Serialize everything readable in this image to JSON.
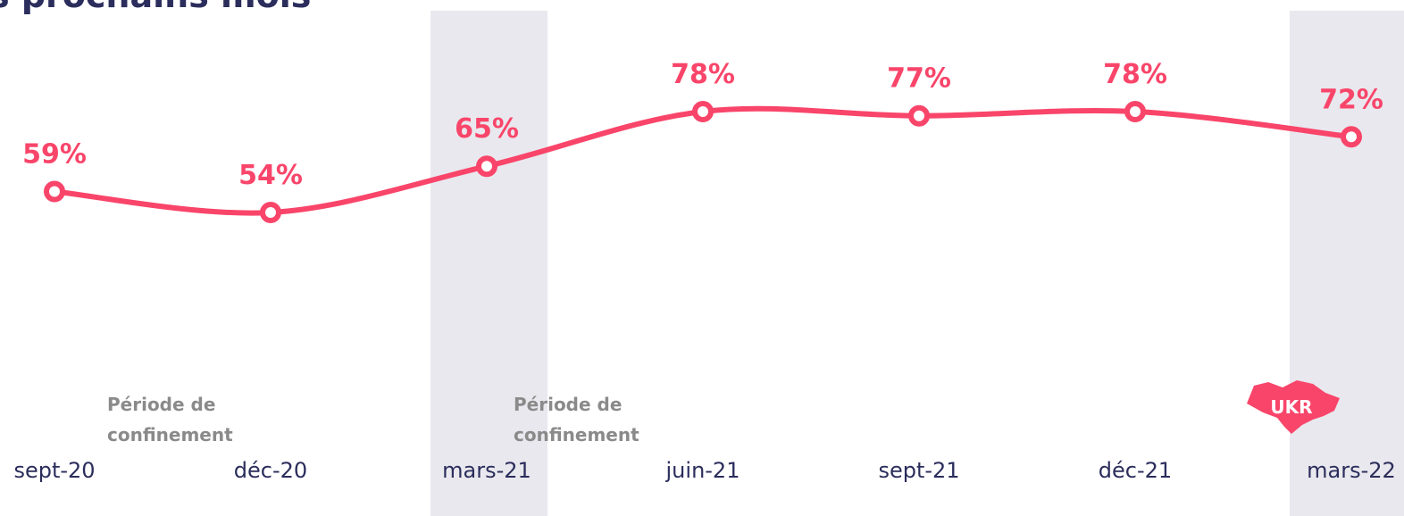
{
  "chart_data": {
    "type": "line",
    "title": "s prochains mois",
    "categories": [
      "sept-20",
      "déc-20",
      "mars-21",
      "juin-21",
      "sept-21",
      "déc-21",
      "mars-22"
    ],
    "series": [
      {
        "color": "#f9456a",
        "values": [
          59,
          54,
          65,
          78,
          77,
          78,
          72
        ],
        "value_labels": [
          "59%",
          "54%",
          "65%",
          "78%",
          "77%",
          "78%",
          "72%"
        ]
      }
    ],
    "annotations": [
      [
        "Période de",
        "confinement"
      ],
      [
        "Période de",
        "confinement"
      ],
      [
        "UKR"
      ]
    ]
  }
}
